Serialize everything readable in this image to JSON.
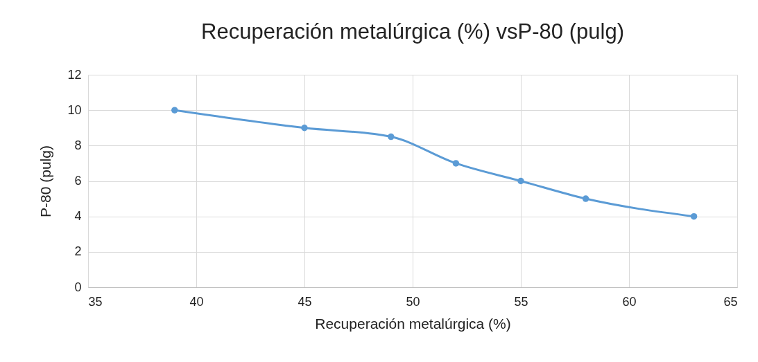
{
  "chart_data": {
    "type": "line",
    "title": "Recuperación metalúrgica (%) vsP-80 (pulg)",
    "xlabel": "Recuperación metalúrgica (%)",
    "ylabel": "P-80 (pulg)",
    "x": [
      39,
      45,
      49,
      52,
      55,
      58,
      63
    ],
    "series": [
      {
        "color": "#5b9bd5",
        "values": [
          10,
          9,
          8.5,
          7,
          6,
          5,
          4
        ]
      }
    ],
    "xlim": [
      35,
      65
    ],
    "xticks": [
      35,
      40,
      45,
      50,
      55,
      60,
      65
    ],
    "ylim": [
      0,
      12
    ],
    "yticks": [
      0,
      2,
      4,
      6,
      8,
      10,
      12
    ],
    "grid": true,
    "marker": "circle",
    "line_style": "solid"
  }
}
